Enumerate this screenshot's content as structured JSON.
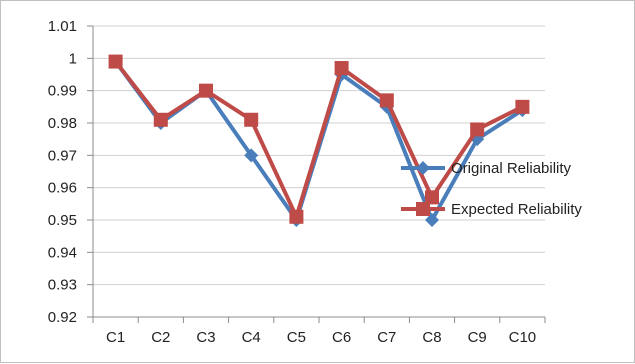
{
  "chart_data": {
    "type": "line",
    "title": "",
    "xlabel": "",
    "ylabel": "",
    "categories": [
      "C1",
      "C2",
      "C3",
      "C4",
      "C5",
      "C6",
      "C7",
      "C8",
      "C9",
      "C10"
    ],
    "y_ticks": [
      "0.92",
      "0.93",
      "0.94",
      "0.95",
      "0.96",
      "0.97",
      "0.98",
      "0.99",
      "1",
      "1.01"
    ],
    "ylim": [
      0.92,
      1.01
    ],
    "grid": "horizontal",
    "legend_position": "right",
    "series": [
      {
        "name": "Original Reliability",
        "color": "#4a7ebb",
        "marker": "diamond",
        "values": [
          0.999,
          0.98,
          0.99,
          0.97,
          0.95,
          0.995,
          0.985,
          0.95,
          0.975,
          0.984
        ]
      },
      {
        "name": "Expected Reliability",
        "color": "#be4b48",
        "marker": "square",
        "values": [
          0.999,
          0.981,
          0.99,
          0.981,
          0.951,
          0.997,
          0.987,
          0.957,
          0.978,
          0.985
        ]
      }
    ]
  }
}
